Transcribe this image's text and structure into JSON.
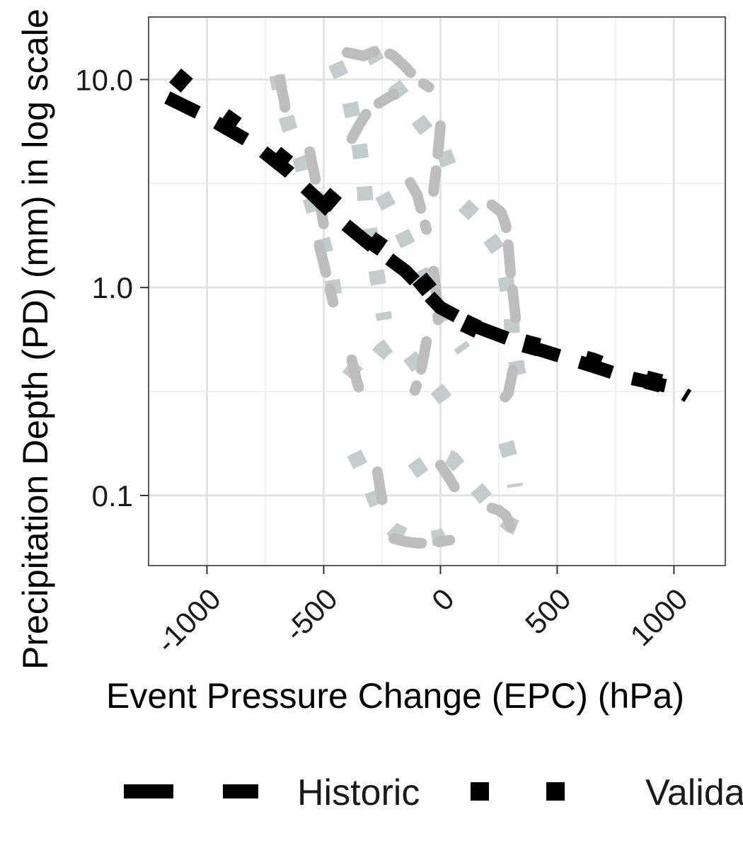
{
  "chart_data": {
    "type": "line",
    "xlabel": "Event Pressure Change (EPC) (hPa)",
    "ylabel": "Precipitation Depth (PD) (mm) in log scale",
    "x_scale": "linear",
    "y_scale": "log10",
    "xlim": [
      -1250,
      1220
    ],
    "ylim": [
      0.046,
      20
    ],
    "x_ticks": [
      -1000,
      -500,
      0,
      500,
      1000
    ],
    "x_tick_labels": [
      "-1000",
      "-500",
      "0",
      "500",
      "1000"
    ],
    "y_ticks": [
      0.1,
      1.0,
      10.0
    ],
    "y_tick_labels": [
      "0.1",
      "1.0",
      "10.0"
    ],
    "grid": true,
    "legend_position": "bottom",
    "legend": [
      "Historic",
      "Validation"
    ],
    "colors": {
      "historic": "#000000",
      "validation": "#000000",
      "sim_light": "#c3cccc",
      "sim_dark": "#bdbdbd"
    },
    "series": [
      {
        "name": "Historic",
        "style": "long-dash",
        "color": "#000000",
        "points": [
          [
            -1170,
            8.2
          ],
          [
            -1000,
            6.6
          ],
          [
            -800,
            4.9
          ],
          [
            -650,
            3.6
          ],
          [
            -450,
            2.2
          ],
          [
            -300,
            1.6
          ],
          [
            -150,
            1.2
          ],
          [
            0,
            0.8
          ],
          [
            150,
            0.65
          ],
          [
            380,
            0.52
          ],
          [
            650,
            0.42
          ],
          [
            800,
            0.37
          ],
          [
            1000,
            0.33
          ],
          [
            1060,
            0.3
          ]
        ]
      },
      {
        "name": "Validation",
        "style": "dotted",
        "color": "#000000",
        "points": [
          [
            -1150,
            10.8
          ],
          [
            -950,
            6.9
          ],
          [
            -750,
            4.8
          ],
          [
            -600,
            3.5
          ],
          [
            -430,
            2.4
          ],
          [
            -300,
            1.7
          ],
          [
            -130,
            1.25
          ],
          [
            50,
            0.72
          ],
          [
            200,
            0.6
          ],
          [
            330,
            0.55
          ],
          [
            650,
            0.44
          ],
          [
            800,
            0.38
          ],
          [
            970,
            0.34
          ],
          [
            1060,
            0.3
          ]
        ]
      },
      {
        "style": "dotted",
        "color": "#c3cccc",
        "points": [
          [
            -700,
            10.5
          ],
          [
            -680,
            8.0
          ],
          [
            -650,
            6.0
          ],
          [
            -600,
            4.2
          ],
          [
            -570,
            3.0
          ],
          [
            -530,
            2.1
          ],
          [
            -500,
            1.6
          ],
          [
            -470,
            1.2
          ],
          [
            -450,
            0.85
          ]
        ]
      },
      {
        "style": "dotted",
        "color": "#c3cccc",
        "points": [
          [
            -450,
            12.0
          ],
          [
            -400,
            9.0
          ],
          [
            -380,
            7.0
          ],
          [
            -350,
            5.0
          ],
          [
            -330,
            3.5
          ],
          [
            -320,
            2.5
          ],
          [
            -300,
            1.8
          ],
          [
            -280,
            1.3
          ],
          [
            -260,
            0.95
          ],
          [
            -240,
            0.7
          ]
        ]
      },
      {
        "style": "dotted",
        "color": "#c3cccc",
        "points": [
          [
            -300,
            14.0
          ],
          [
            -250,
            11.0
          ],
          [
            -200,
            9.5
          ],
          [
            -150,
            8.0
          ],
          [
            -100,
            6.5
          ],
          [
            -50,
            5.5
          ],
          [
            0,
            5.0
          ],
          [
            50,
            3.5
          ]
        ]
      },
      {
        "style": "dotted",
        "color": "#c3cccc",
        "points": [
          [
            -250,
            2.8
          ],
          [
            -200,
            2.2
          ],
          [
            -150,
            1.7
          ],
          [
            -100,
            1.3
          ],
          [
            -50,
            1.0
          ],
          [
            0,
            0.8
          ],
          [
            50,
            0.6
          ],
          [
            100,
            0.5
          ]
        ]
      },
      {
        "style": "dotted",
        "color": "#c3cccc",
        "points": [
          [
            100,
            2.5
          ],
          [
            150,
            2.2
          ],
          [
            200,
            1.8
          ],
          [
            250,
            1.5
          ],
          [
            280,
            1.1
          ],
          [
            300,
            0.8
          ],
          [
            310,
            0.55
          ],
          [
            330,
            0.4
          ],
          [
            350,
            0.33
          ]
        ]
      },
      {
        "style": "dotted",
        "color": "#c3cccc",
        "points": [
          [
            -400,
            0.42
          ],
          [
            -350,
            0.38
          ],
          [
            -300,
            0.43
          ],
          [
            -250,
            0.5
          ],
          [
            -200,
            0.55
          ],
          [
            -150,
            0.5
          ],
          [
            -100,
            0.42
          ],
          [
            -50,
            0.36
          ],
          [
            0,
            0.31
          ],
          [
            50,
            0.26
          ]
        ]
      },
      {
        "style": "dotted",
        "color": "#c3cccc",
        "points": [
          [
            -370,
            0.16
          ],
          [
            -330,
            0.13
          ],
          [
            -300,
            0.11
          ],
          [
            -280,
            0.095
          ],
          [
            -260,
            0.085
          ],
          [
            -240,
            0.075
          ],
          [
            -200,
            0.068
          ],
          [
            -150,
            0.064
          ],
          [
            -100,
            0.062
          ],
          [
            -50,
            0.062
          ],
          [
            0,
            0.063
          ],
          [
            50,
            0.068
          ]
        ]
      },
      {
        "style": "dotted",
        "color": "#c3cccc",
        "points": [
          [
            -120,
            0.13
          ],
          [
            -80,
            0.14
          ],
          [
            -40,
            0.15
          ],
          [
            0,
            0.16
          ],
          [
            50,
            0.15
          ],
          [
            100,
            0.13
          ],
          [
            150,
            0.11
          ],
          [
            200,
            0.095
          ],
          [
            250,
            0.08
          ],
          [
            300,
            0.072
          ],
          [
            350,
            0.068
          ],
          [
            420,
            0.068
          ]
        ]
      },
      {
        "style": "dotted",
        "color": "#c3cccc",
        "points": [
          [
            280,
            0.18
          ],
          [
            300,
            0.15
          ],
          [
            310,
            0.13
          ],
          [
            320,
            0.11
          ]
        ]
      },
      {
        "style": "dashed",
        "color": "#bdbdbd",
        "points": [
          [
            -690,
            10.0
          ],
          [
            -670,
            8.0
          ],
          [
            -660,
            6.5
          ]
        ]
      },
      {
        "style": "dashed",
        "color": "#bdbdbd",
        "points": [
          [
            -560,
            4.5
          ],
          [
            -540,
            3.5
          ],
          [
            -520,
            2.7
          ],
          [
            -500,
            2.0
          ]
        ]
      },
      {
        "style": "dashed",
        "color": "#bdbdbd",
        "points": [
          [
            -520,
            1.6
          ],
          [
            -500,
            1.3
          ],
          [
            -480,
            1.05
          ],
          [
            -460,
            0.85
          ]
        ]
      },
      {
        "style": "dashed",
        "color": "#bdbdbd",
        "points": [
          [
            -400,
            13.5
          ],
          [
            -330,
            13.0
          ],
          [
            -260,
            14.0
          ],
          [
            -200,
            13.0
          ],
          [
            -150,
            11.5
          ],
          [
            -100,
            10.0
          ],
          [
            -50,
            9.2
          ]
        ]
      },
      {
        "style": "dashed",
        "color": "#bdbdbd",
        "points": [
          [
            -380,
            5.2
          ],
          [
            -350,
            6.0
          ],
          [
            -320,
            6.8
          ],
          [
            -280,
            7.5
          ],
          [
            -240,
            8.0
          ],
          [
            -200,
            8.5
          ]
        ]
      },
      {
        "style": "dashed",
        "color": "#bdbdbd",
        "points": [
          [
            -130,
            3.2
          ],
          [
            -100,
            2.8
          ],
          [
            -80,
            2.3
          ],
          [
            -60,
            1.9
          ]
        ]
      },
      {
        "style": "dashed",
        "color": "#bdbdbd",
        "points": [
          [
            0,
            6.0
          ],
          [
            -10,
            4.5
          ],
          [
            -20,
            3.6
          ],
          [
            -30,
            2.9
          ]
        ]
      },
      {
        "style": "dashed",
        "color": "#bdbdbd",
        "points": [
          [
            220,
            2.5
          ],
          [
            260,
            2.3
          ],
          [
            280,
            2.0
          ],
          [
            290,
            1.6
          ],
          [
            300,
            1.2
          ],
          [
            310,
            0.95
          ],
          [
            320,
            0.75
          ],
          [
            330,
            0.6
          ]
        ]
      },
      {
        "style": "dashed",
        "color": "#bdbdbd",
        "points": [
          [
            -30,
            1.2
          ],
          [
            -20,
            1.0
          ],
          [
            -15,
            0.85
          ],
          [
            -10,
            0.7
          ]
        ]
      },
      {
        "style": "dashed",
        "color": "#bdbdbd",
        "points": [
          [
            -380,
            0.45
          ],
          [
            -370,
            0.4
          ],
          [
            -360,
            0.36
          ],
          [
            -350,
            0.33
          ],
          [
            -340,
            0.3
          ],
          [
            -350,
            0.28
          ]
        ]
      },
      {
        "style": "dashed",
        "color": "#bdbdbd",
        "points": [
          [
            -60,
            0.55
          ],
          [
            -70,
            0.48
          ],
          [
            -80,
            0.42
          ],
          [
            -90,
            0.37
          ],
          [
            -110,
            0.32
          ]
        ]
      },
      {
        "style": "dashed",
        "color": "#bdbdbd",
        "points": [
          [
            310,
            0.4
          ],
          [
            300,
            0.35
          ],
          [
            290,
            0.31
          ],
          [
            270,
            0.29
          ],
          [
            240,
            0.28
          ]
        ]
      },
      {
        "style": "dashed",
        "color": "#bdbdbd",
        "points": [
          [
            -270,
            0.13
          ],
          [
            -260,
            0.11
          ],
          [
            -250,
            0.095
          ],
          [
            -245,
            0.08
          ]
        ]
      },
      {
        "style": "dashed",
        "color": "#bdbdbd",
        "points": [
          [
            -200,
            0.062
          ],
          [
            -150,
            0.06
          ],
          [
            -100,
            0.059
          ],
          [
            -50,
            0.059
          ],
          [
            0,
            0.06
          ],
          [
            40,
            0.061
          ]
        ]
      },
      {
        "style": "dashed",
        "color": "#bdbdbd",
        "points": [
          [
            0,
            0.14
          ],
          [
            20,
            0.13
          ],
          [
            40,
            0.12
          ],
          [
            60,
            0.11
          ]
        ]
      },
      {
        "style": "dashed",
        "color": "#bdbdbd",
        "points": [
          [
            220,
            0.087
          ],
          [
            250,
            0.085
          ],
          [
            280,
            0.08
          ],
          [
            300,
            0.072
          ],
          [
            310,
            0.066
          ]
        ]
      }
    ]
  }
}
